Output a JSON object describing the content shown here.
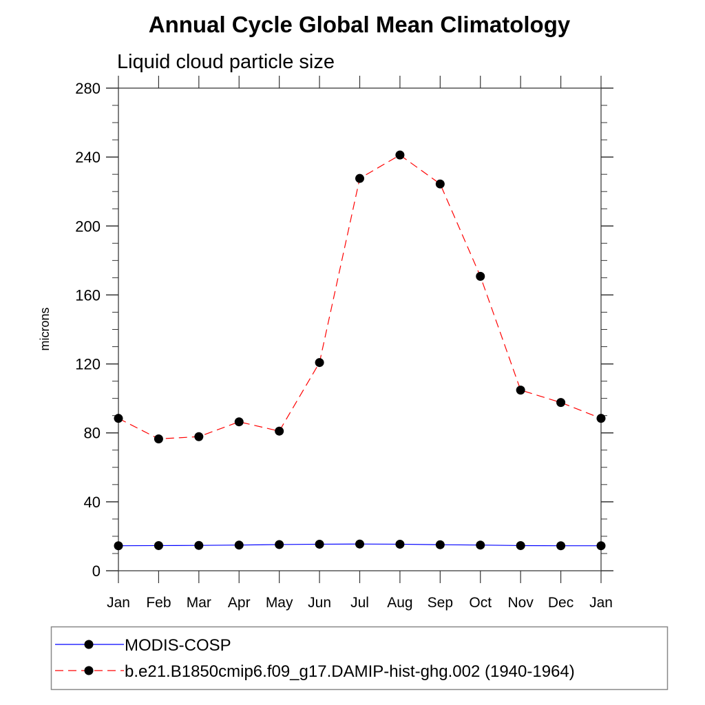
{
  "chart_data": {
    "type": "line",
    "title": "Annual Cycle Global Mean Climatology",
    "subtitle": "Liquid cloud particle size",
    "xlabel": "",
    "ylabel": "microns",
    "categories": [
      "Jan",
      "Feb",
      "Mar",
      "Apr",
      "May",
      "Jun",
      "Jul",
      "Aug",
      "Sep",
      "Oct",
      "Nov",
      "Dec",
      "Jan"
    ],
    "ylim": [
      0,
      280
    ],
    "yticks": [
      0,
      40,
      80,
      120,
      160,
      200,
      240,
      280
    ],
    "yminor_step": 10,
    "grid": false,
    "legend_position": "bottom",
    "series": [
      {
        "name": "MODIS-COSP",
        "color": "#0000ff",
        "line_style": "solid",
        "marker": "filled-circle",
        "marker_color": "#000000",
        "values": [
          14.5,
          14.6,
          14.7,
          14.9,
          15.2,
          15.4,
          15.5,
          15.4,
          15.1,
          14.9,
          14.6,
          14.5,
          14.5
        ]
      },
      {
        "name": "b.e21.B1850cmip6.f09_g17.DAMIP-hist-ghg.002 (1940-1964)",
        "color": "#ff0000",
        "line_style": "dashed",
        "marker": "filled-circle",
        "marker_color": "#000000",
        "values": [
          88.4,
          76.5,
          77.8,
          86.4,
          81.0,
          120.8,
          227.6,
          241.2,
          224.4,
          170.8,
          104.8,
          97.6,
          88.4
        ]
      }
    ]
  }
}
